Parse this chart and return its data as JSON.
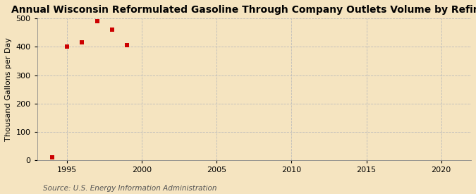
{
  "title": "Annual Wisconsin Reformulated Gasoline Through Company Outlets Volume by Refiners",
  "ylabel": "Thousand Gallons per Day",
  "source": "Source: U.S. Energy Information Administration",
  "background_color": "#f5e4c0",
  "plot_bg_color": "#f5e4c0",
  "data_points": [
    [
      1994,
      10
    ],
    [
      1995,
      401
    ],
    [
      1996,
      416
    ],
    [
      1997,
      491
    ],
    [
      1998,
      462
    ],
    [
      1999,
      406
    ]
  ],
  "marker_color": "#cc0000",
  "marker": "s",
  "marker_size": 4,
  "xlim": [
    1993,
    2022
  ],
  "ylim": [
    0,
    500
  ],
  "yticks": [
    0,
    100,
    200,
    300,
    400,
    500
  ],
  "xticks": [
    1995,
    2000,
    2005,
    2010,
    2015,
    2020
  ],
  "grid_color": "#bbbbbb",
  "grid_style": "--",
  "title_fontsize": 10,
  "label_fontsize": 8,
  "tick_fontsize": 8,
  "source_fontsize": 7.5
}
